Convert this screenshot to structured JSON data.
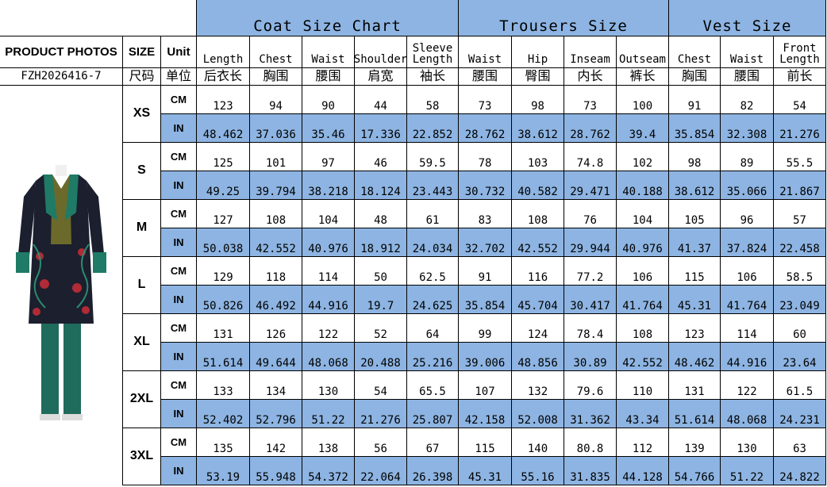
{
  "left_header": {
    "photos": "PRODUCT PHOTOS",
    "size": "SIZE",
    "unit": "Unit",
    "code": "FZH2026416-7",
    "size_zh": "尺码",
    "unit_zh": "单位"
  },
  "groups": [
    {
      "title": "Coat Size Chart",
      "columns": [
        {
          "en": "Length",
          "zh": "后衣长"
        },
        {
          "en": "Chest",
          "zh": "胸围"
        },
        {
          "en": "Waist",
          "zh": "腰围"
        },
        {
          "en": "Shoulder",
          "zh": "肩宽"
        },
        {
          "en": "Sleeve Length",
          "zh": "袖长"
        }
      ]
    },
    {
      "title": "Trousers Size",
      "columns": [
        {
          "en": "Waist",
          "zh": "腰围"
        },
        {
          "en": "Hip",
          "zh": "臀围"
        },
        {
          "en": "Inseam",
          "zh": "内长"
        },
        {
          "en": "Outseam",
          "zh": "裤长"
        }
      ]
    },
    {
      "title": "Vest Size",
      "columns": [
        {
          "en": "Chest",
          "zh": "胸围"
        },
        {
          "en": "Waist",
          "zh": "腰围"
        },
        {
          "en": "Front Length",
          "zh": "前长"
        }
      ]
    }
  ],
  "sizes": [
    {
      "size": "XS",
      "rows": [
        {
          "unit": "CM",
          "values": [
            123,
            94,
            90,
            44,
            58,
            73,
            98,
            73,
            100,
            91,
            82,
            54
          ]
        },
        {
          "unit": "IN",
          "values": [
            48.462,
            37.036,
            35.46,
            17.336,
            22.852,
            28.762,
            38.612,
            28.762,
            39.4,
            35.854,
            32.308,
            21.276
          ]
        }
      ]
    },
    {
      "size": "S",
      "rows": [
        {
          "unit": "CM",
          "values": [
            125,
            101,
            97,
            46,
            59.5,
            78,
            103,
            74.8,
            102,
            98,
            89,
            55.5
          ]
        },
        {
          "unit": "IN",
          "values": [
            49.25,
            39.794,
            38.218,
            18.124,
            23.443,
            30.732,
            40.582,
            29.471,
            40.188,
            38.612,
            35.066,
            21.867
          ]
        }
      ]
    },
    {
      "size": "M",
      "rows": [
        {
          "unit": "CM",
          "values": [
            127,
            108,
            104,
            48,
            61,
            83,
            108,
            76,
            104,
            105,
            96,
            57
          ]
        },
        {
          "unit": "IN",
          "values": [
            50.038,
            42.552,
            40.976,
            18.912,
            24.034,
            32.702,
            42.552,
            29.944,
            40.976,
            41.37,
            37.824,
            22.458
          ]
        }
      ]
    },
    {
      "size": "L",
      "rows": [
        {
          "unit": "CM",
          "values": [
            129,
            118,
            114,
            50,
            62.5,
            91,
            116,
            77.2,
            106,
            115,
            106,
            58.5
          ]
        },
        {
          "unit": "IN",
          "values": [
            50.826,
            46.492,
            44.916,
            19.7,
            24.625,
            35.854,
            45.704,
            30.417,
            41.764,
            45.31,
            41.764,
            23.049
          ]
        }
      ]
    },
    {
      "size": "XL",
      "rows": [
        {
          "unit": "CM",
          "values": [
            131,
            126,
            122,
            52,
            64,
            99,
            124,
            78.4,
            108,
            123,
            114,
            60
          ]
        },
        {
          "unit": "IN",
          "values": [
            51.614,
            49.644,
            48.068,
            20.488,
            25.216,
            39.006,
            48.856,
            30.89,
            42.552,
            48.462,
            44.916,
            23.64
          ]
        }
      ]
    },
    {
      "size": "2XL",
      "rows": [
        {
          "unit": "CM",
          "values": [
            133,
            134,
            130,
            54,
            65.5,
            107,
            132,
            79.6,
            110,
            131,
            122,
            61.5
          ]
        },
        {
          "unit": "IN",
          "values": [
            52.402,
            52.796,
            51.22,
            21.276,
            25.807,
            42.158,
            52.008,
            31.362,
            43.34,
            51.614,
            48.068,
            24.231
          ]
        }
      ]
    },
    {
      "size": "3XL",
      "rows": [
        {
          "unit": "CM",
          "values": [
            135,
            142,
            138,
            56,
            67,
            115,
            140,
            80.8,
            112,
            139,
            130,
            63
          ]
        },
        {
          "unit": "IN",
          "values": [
            53.19,
            55.948,
            54.372,
            22.064,
            26.398,
            45.31,
            55.16,
            31.835,
            44.128,
            54.766,
            51.22,
            24.822
          ]
        }
      ]
    }
  ]
}
